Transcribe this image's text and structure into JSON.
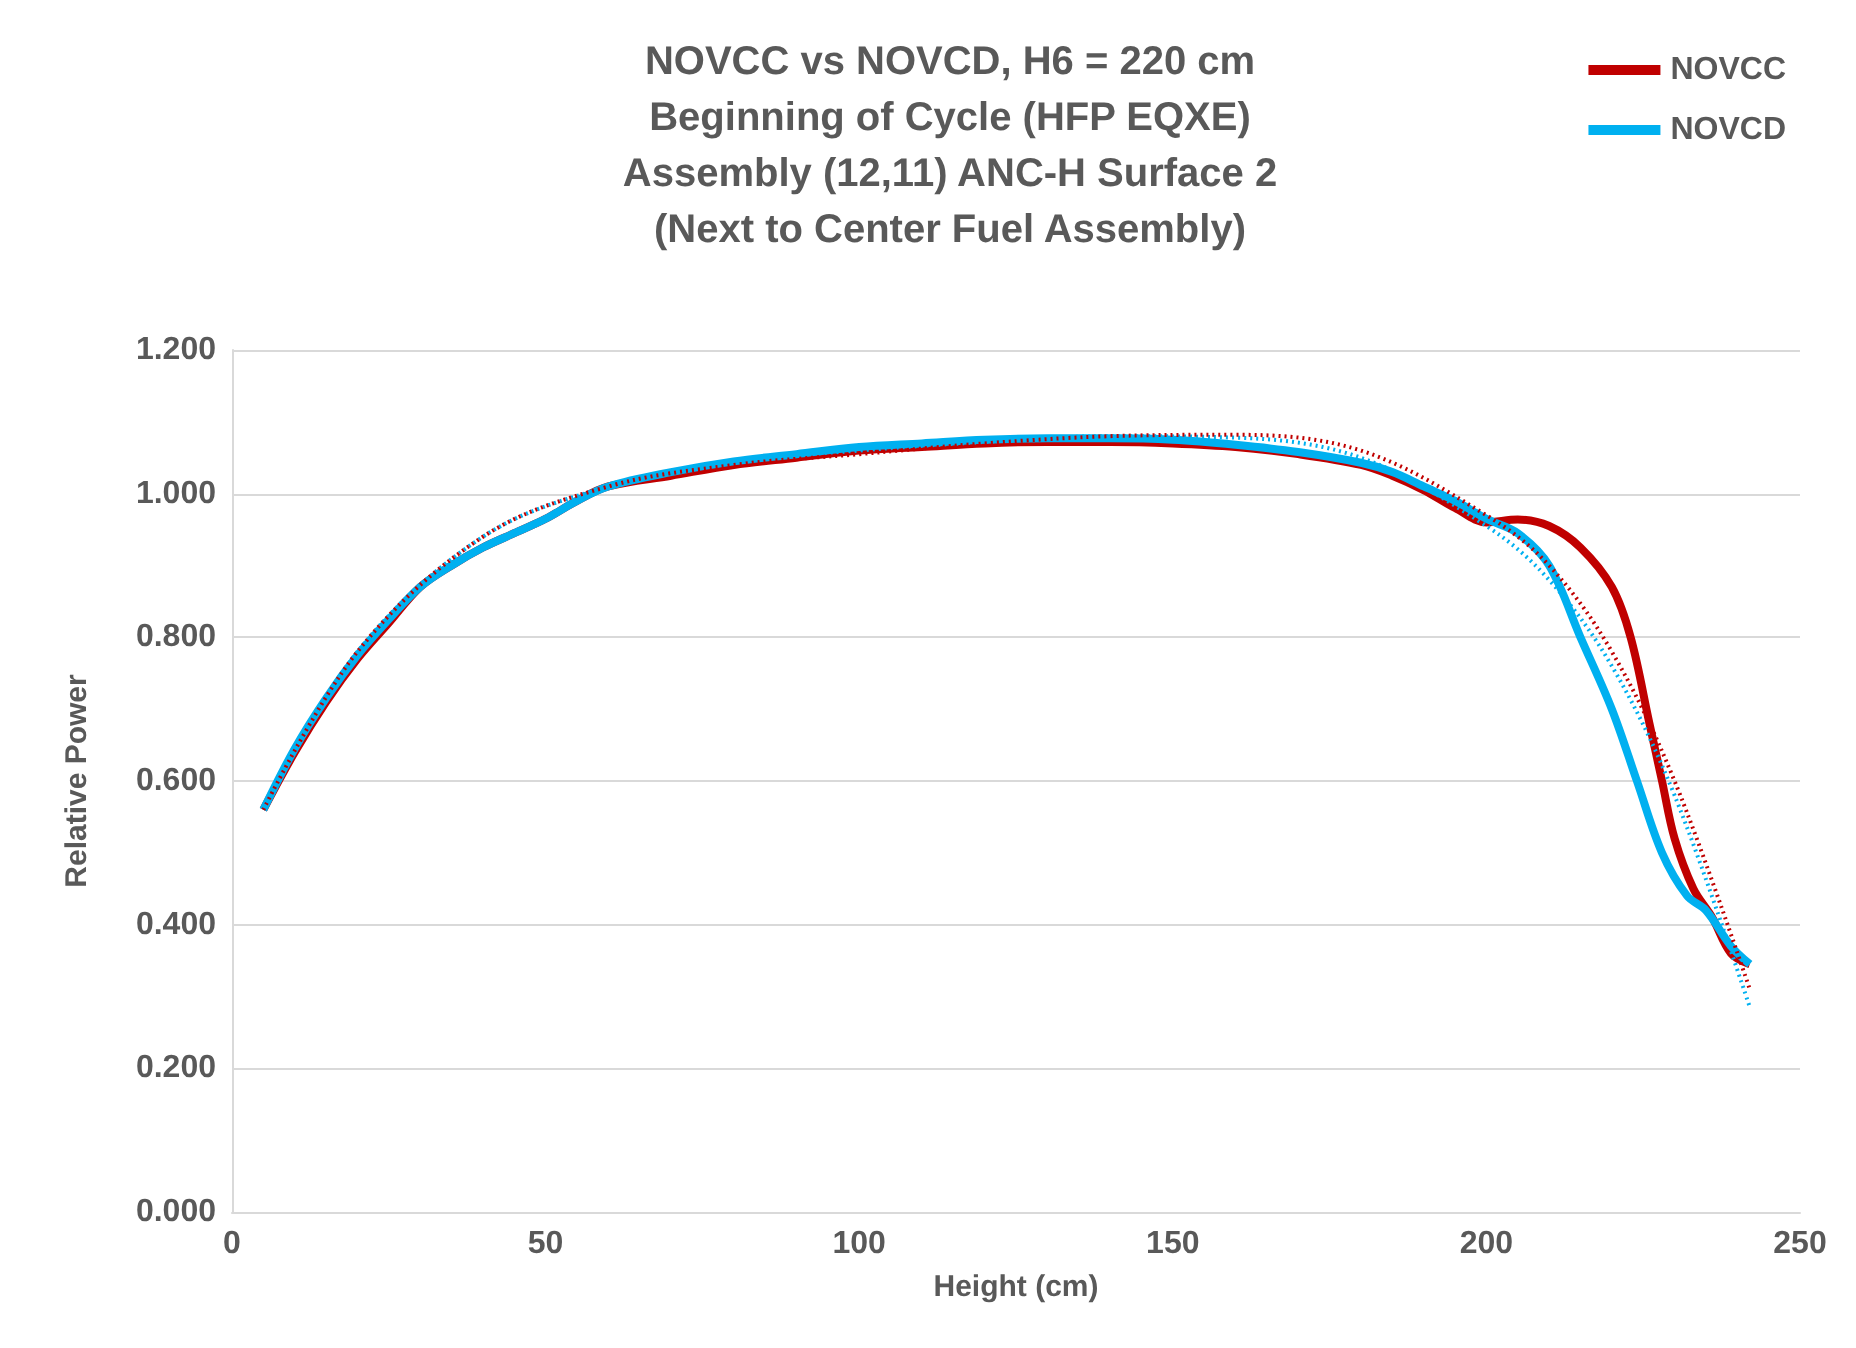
{
  "chart_data": {
    "type": "line",
    "title": "NOVCC vs NOVCD, H6 = 220 cm\nBeginning of Cycle (HFP EQXE)\nAssembly (12,11) ANC-H Surface 2\n(Next to Center Fuel Assembly)",
    "xlabel": "Height (cm)",
    "ylabel": "Relative Power",
    "xlim": [
      0,
      250
    ],
    "xticks": [
      0,
      50,
      100,
      150,
      200,
      250
    ],
    "ylim": [
      0,
      1.2
    ],
    "yticks": [
      {
        "value": 0,
        "label": "0.000"
      },
      {
        "value": 0.2,
        "label": "0.200"
      },
      {
        "value": 0.4,
        "label": "0.400"
      },
      {
        "value": 0.6,
        "label": "0.600"
      },
      {
        "value": 0.8,
        "label": "0.800"
      },
      {
        "value": 1.0,
        "label": "1.000"
      },
      {
        "value": 1.2,
        "label": "1.200"
      }
    ],
    "grid": "y",
    "legend": "top right",
    "marker": "none",
    "series": [
      {
        "name": "NOVCC",
        "color": "#c00000",
        "x": [
          5,
          10,
          15,
          20,
          25,
          30,
          35,
          40,
          45,
          50,
          55,
          60,
          70,
          80,
          90,
          100,
          110,
          120,
          130,
          140,
          150,
          160,
          170,
          180,
          185,
          190,
          195,
          200,
          205,
          210,
          215,
          220,
          223,
          226,
          228,
          230,
          233,
          236,
          239,
          242
        ],
        "values": [
          0.56,
          0.64,
          0.71,
          0.77,
          0.82,
          0.87,
          0.9,
          0.925,
          0.945,
          0.965,
          0.99,
          1.01,
          1.025,
          1.04,
          1.05,
          1.06,
          1.065,
          1.07,
          1.072,
          1.072,
          1.07,
          1.065,
          1.055,
          1.04,
          1.025,
          1.005,
          0.98,
          0.96,
          0.964,
          0.955,
          0.925,
          0.87,
          0.8,
          0.68,
          0.6,
          0.52,
          0.45,
          0.41,
          0.36,
          0.345
        ]
      },
      {
        "name": "NOVCD",
        "color": "#00b0f0",
        "x": [
          5,
          10,
          15,
          20,
          25,
          30,
          35,
          40,
          45,
          50,
          55,
          60,
          70,
          80,
          90,
          100,
          110,
          120,
          130,
          140,
          150,
          160,
          170,
          180,
          185,
          190,
          195,
          200,
          205,
          210,
          215,
          220,
          224,
          228,
          232,
          235,
          239,
          242
        ],
        "values": [
          0.56,
          0.645,
          0.715,
          0.775,
          0.825,
          0.87,
          0.9,
          0.925,
          0.945,
          0.965,
          0.99,
          1.01,
          1.03,
          1.045,
          1.055,
          1.065,
          1.07,
          1.075,
          1.077,
          1.077,
          1.075,
          1.068,
          1.058,
          1.043,
          1.03,
          1.01,
          0.99,
          0.965,
          0.945,
          0.9,
          0.8,
          0.7,
          0.6,
          0.5,
          0.44,
          0.42,
          0.37,
          0.345
        ]
      },
      {
        "type": "line",
        "color": "#c00000",
        "line_style": "dotted",
        "x": [
          5,
          20,
          40,
          60,
          80,
          100,
          120,
          140,
          160,
          180,
          200,
          210,
          220,
          230,
          242
        ],
        "values": [
          0.56,
          0.78,
          0.94,
          1.01,
          1.04,
          1.055,
          1.07,
          1.08,
          1.082,
          1.06,
          0.97,
          0.9,
          0.78,
          0.6,
          0.31
        ]
      },
      {
        "type": "line",
        "color": "#00b0f0",
        "line_style": "dotted",
        "x": [
          5,
          20,
          40,
          60,
          80,
          100,
          120,
          140,
          160,
          180,
          200,
          210,
          220,
          230,
          242
        ],
        "values": [
          0.56,
          0.78,
          0.94,
          1.01,
          1.045,
          1.06,
          1.072,
          1.08,
          1.078,
          1.05,
          0.955,
          0.88,
          0.76,
          0.58,
          0.285
        ]
      }
    ]
  }
}
